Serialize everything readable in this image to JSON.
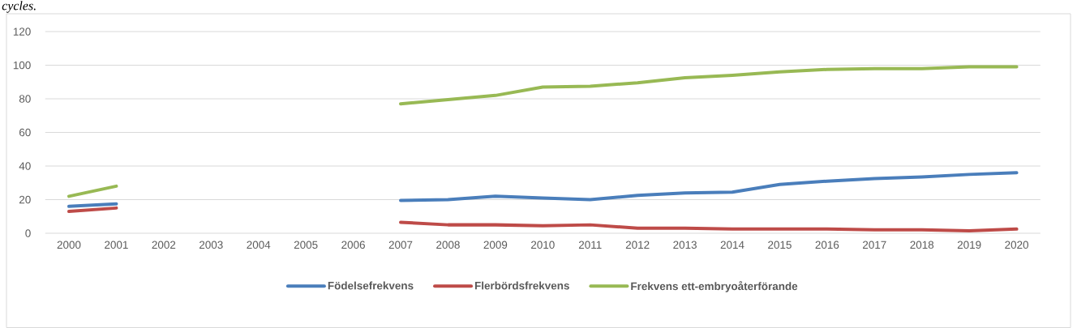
{
  "chart_data": {
    "type": "line",
    "annotations": [
      "cycles."
    ],
    "categories": [
      "2000",
      "2001",
      "2002",
      "2003",
      "2004",
      "2005",
      "2006",
      "2007",
      "2008",
      "2009",
      "2010",
      "2011",
      "2012",
      "2013",
      "2014",
      "2015",
      "2016",
      "2017",
      "2018",
      "2019",
      "2020"
    ],
    "series": [
      {
        "name": "Födelsefrekvens",
        "color": "#4a7ebb",
        "values": [
          16,
          17.5,
          null,
          null,
          null,
          null,
          null,
          19.5,
          20,
          22,
          21,
          20,
          22.5,
          24,
          24.5,
          29,
          31,
          32.5,
          33.5,
          35,
          36
        ]
      },
      {
        "name": "Flerbördsfrekvens",
        "color": "#be4b48",
        "values": [
          13,
          15,
          null,
          null,
          null,
          null,
          null,
          6.5,
          5,
          5,
          4.5,
          5,
          3,
          3,
          2.5,
          2.5,
          2.5,
          2,
          2,
          1.5,
          2.5
        ]
      },
      {
        "name": "Frekvens ett-embryoåterförande",
        "color": "#98b954",
        "values": [
          22,
          28,
          null,
          null,
          null,
          null,
          null,
          77,
          79.5,
          82,
          87,
          87.5,
          89.5,
          92.5,
          94,
          96,
          97.5,
          98,
          98,
          99,
          99
        ]
      }
    ],
    "ylim": [
      0,
      120
    ],
    "yticks": [
      0,
      20,
      40,
      60,
      80,
      100,
      120
    ],
    "grid": "y",
    "legend": "bottom"
  }
}
